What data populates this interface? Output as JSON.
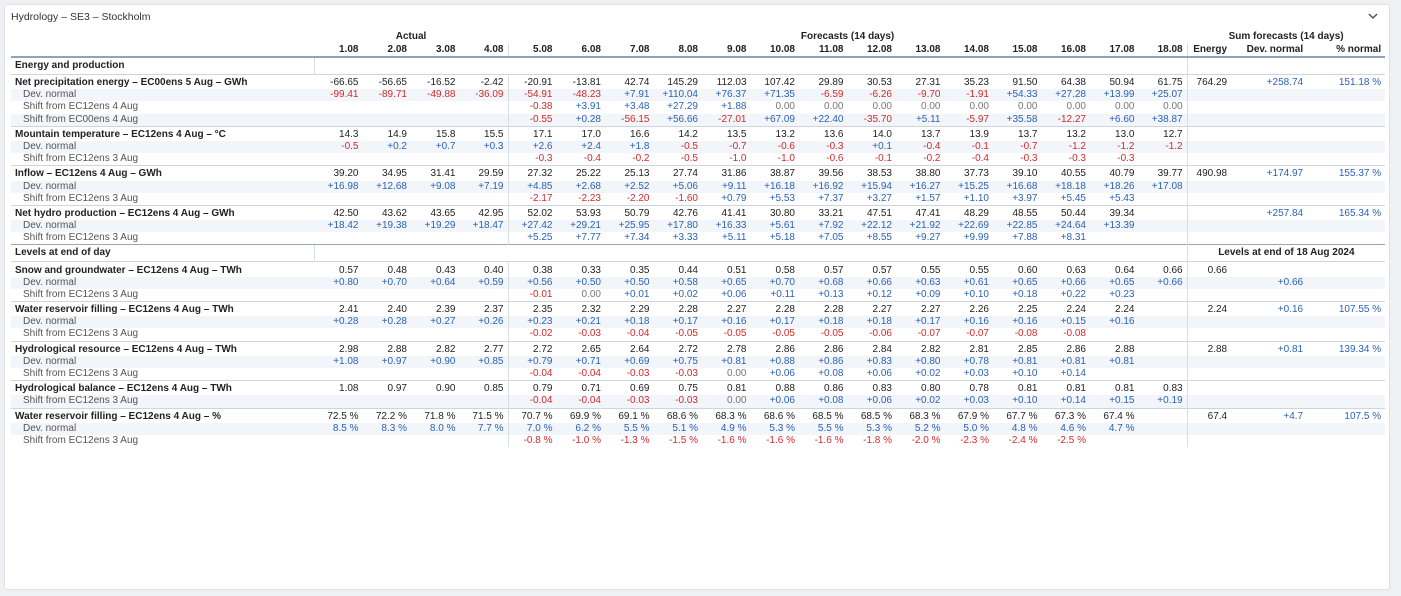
{
  "title": "Hydrology – SE3 – Stockholm",
  "header": {
    "groups": [
      "Actual",
      "Forecasts (14 days)",
      "Sum forecasts (14 days)"
    ],
    "dates": [
      "1.08",
      "2.08",
      "3.08",
      "4.08",
      "5.08",
      "6.08",
      "7.08",
      "8.08",
      "9.08",
      "10.08",
      "11.08",
      "12.08",
      "13.08",
      "14.08",
      "15.08",
      "16.08",
      "17.08",
      "18.08"
    ],
    "sum_cols": [
      "Energy",
      "Dev. normal",
      "% normal"
    ]
  },
  "rows": [
    {
      "type": "section",
      "label": "Energy and production"
    },
    {
      "type": "main",
      "label": "Net precipitation energy – EC00ens 5 Aug – GWh",
      "values": [
        "-66.65",
        "-56.65",
        "-16.52",
        "-2.42",
        "-20.91",
        "-13.81",
        "42.74",
        "145.29",
        "112.03",
        "107.42",
        "29.89",
        "30.53",
        "27.31",
        "35.23",
        "91.50",
        "64.38",
        "50.94",
        "61.75"
      ],
      "sums": [
        "764.29",
        "+258.74",
        "151.18 %"
      ]
    },
    {
      "type": "sub",
      "label": "Dev. normal",
      "values": [
        "-99.41",
        "-89.71",
        "-49.88",
        "-36.09",
        "-54.91",
        "-48.23",
        "+7.91",
        "+110.04",
        "+76.37",
        "+71.35",
        "-6.59",
        "-6.26",
        "-9.70",
        "-1.91",
        "+54.33",
        "+27.28",
        "+13.99",
        "+25.07"
      ],
      "sums": [
        "",
        "",
        ""
      ]
    },
    {
      "type": "sub",
      "label": "Shift from EC12ens 4 Aug",
      "values": [
        "",
        "",
        "",
        "",
        "-0.38",
        "+3.91",
        "+3.48",
        "+27.29",
        "+1.88",
        "0.00",
        "0.00",
        "0.00",
        "0.00",
        "0.00",
        "0.00",
        "0.00",
        "0.00",
        "0.00"
      ],
      "sums": [
        "",
        "",
        ""
      ]
    },
    {
      "type": "sub",
      "label": "Shift from EC00ens 4 Aug",
      "values": [
        "",
        "",
        "",
        "",
        "-0.55",
        "+0.28",
        "-56.15",
        "+56.66",
        "-27.01",
        "+67.09",
        "+22.40",
        "-35.70",
        "+5.11",
        "-5.97",
        "+35.58",
        "-12.27",
        "+6.60",
        "+38.87"
      ],
      "sums": [
        "",
        "",
        ""
      ]
    },
    {
      "type": "main",
      "label": "Mountain temperature – EC12ens 4 Aug – °C",
      "values": [
        "14.3",
        "14.9",
        "15.8",
        "15.5",
        "17.1",
        "17.0",
        "16.6",
        "14.2",
        "13.5",
        "13.2",
        "13.6",
        "14.0",
        "13.7",
        "13.9",
        "13.7",
        "13.2",
        "13.0",
        "12.7"
      ],
      "sums": [
        "",
        "",
        ""
      ]
    },
    {
      "type": "sub",
      "label": "Dev. normal",
      "values": [
        "-0.5",
        "+0.2",
        "+0.7",
        "+0.3",
        "+2.6",
        "+2.4",
        "+1.8",
        "-0.5",
        "-0.7",
        "-0.6",
        "-0.3",
        "+0.1",
        "-0.4",
        "-0.1",
        "-0.7",
        "-1.2",
        "-1.2",
        "-1.2"
      ],
      "sums": [
        "",
        "",
        ""
      ]
    },
    {
      "type": "sub",
      "label": "Shift from EC12ens 3 Aug",
      "values": [
        "",
        "",
        "",
        "",
        "-0.3",
        "-0.4",
        "-0.2",
        "-0.5",
        "-1.0",
        "-1.0",
        "-0.6",
        "-0.1",
        "-0.2",
        "-0.4",
        "-0.3",
        "-0.3",
        "-0.3",
        ""
      ],
      "sums": [
        "",
        "",
        ""
      ]
    },
    {
      "type": "main",
      "label": "Inflow – EC12ens 4 Aug – GWh",
      "values": [
        "39.20",
        "34.95",
        "31.41",
        "29.59",
        "27.32",
        "25.22",
        "25.13",
        "27.74",
        "31.86",
        "38.87",
        "39.56",
        "38.53",
        "38.80",
        "37.73",
        "39.10",
        "40.55",
        "40.79",
        "39.77"
      ],
      "sums": [
        "490.98",
        "+174.97",
        "155.37 %"
      ]
    },
    {
      "type": "sub",
      "label": "Dev. normal",
      "values": [
        "+16.98",
        "+12.68",
        "+9.08",
        "+7.19",
        "+4.85",
        "+2.68",
        "+2.52",
        "+5.06",
        "+9.11",
        "+16.18",
        "+16.92",
        "+15.94",
        "+16.27",
        "+15.25",
        "+16.68",
        "+18.18",
        "+18.26",
        "+17.08"
      ],
      "sums": [
        "",
        "",
        ""
      ]
    },
    {
      "type": "sub",
      "label": "Shift from EC12ens 3 Aug",
      "values": [
        "",
        "",
        "",
        "",
        "-2.17",
        "-2.23",
        "-2.20",
        "-1.60",
        "+0.79",
        "+5.53",
        "+7.37",
        "+3.27",
        "+1.57",
        "+1.10",
        "+3.97",
        "+5.45",
        "+5.43",
        ""
      ],
      "sums": [
        "",
        "",
        ""
      ]
    },
    {
      "type": "main",
      "label": "Net hydro production – EC12ens 4 Aug – GWh",
      "values": [
        "42.50",
        "43.62",
        "43.65",
        "42.95",
        "52.02",
        "53.93",
        "50.79",
        "42.76",
        "41.41",
        "30.80",
        "33.21",
        "47.51",
        "47.41",
        "48.29",
        "48.55",
        "50.44",
        "39.34",
        ""
      ],
      "sums": [
        "",
        "+257.84",
        "165.34 %"
      ]
    },
    {
      "type": "sub",
      "label": "Dev. normal",
      "values": [
        "+18.42",
        "+19.38",
        "+19.29",
        "+18.47",
        "+27.42",
        "+29.21",
        "+25.95",
        "+17.80",
        "+16.33",
        "+5.61",
        "+7.92",
        "+22.12",
        "+21.92",
        "+22.69",
        "+22.85",
        "+24.64",
        "+13.39",
        ""
      ],
      "sums": [
        "",
        "",
        ""
      ]
    },
    {
      "type": "sub",
      "label": "Shift from EC12ens 3 Aug",
      "values": [
        "",
        "",
        "",
        "",
        "+5.25",
        "+7.77",
        "+7.34",
        "+3.33",
        "+5.11",
        "+5.18",
        "+7.05",
        "+8.55",
        "+9.27",
        "+9.99",
        "+7.88",
        "+8.31",
        "",
        ""
      ],
      "sums": [
        "",
        "",
        ""
      ]
    },
    {
      "type": "section",
      "label": "Levels at end of day",
      "right": "Levels at end of 18 Aug 2024"
    },
    {
      "type": "main",
      "label": "Snow and groundwater – EC12ens 4 Aug – TWh",
      "values": [
        "0.57",
        "0.48",
        "0.43",
        "0.40",
        "0.38",
        "0.33",
        "0.35",
        "0.44",
        "0.51",
        "0.58",
        "0.57",
        "0.57",
        "0.55",
        "0.55",
        "0.60",
        "0.63",
        "0.64",
        "0.66"
      ],
      "sums": [
        "0.66",
        "",
        ""
      ]
    },
    {
      "type": "sub",
      "label": "Dev. normal",
      "values": [
        "+0.80",
        "+0.70",
        "+0.64",
        "+0.59",
        "+0.56",
        "+0.50",
        "+0.50",
        "+0.58",
        "+0.65",
        "+0.70",
        "+0.68",
        "+0.66",
        "+0.63",
        "+0.61",
        "+0.65",
        "+0.66",
        "+0.65",
        "+0.66"
      ],
      "sums": [
        "",
        "+0.66",
        ""
      ]
    },
    {
      "type": "sub",
      "label": "Shift from EC12ens 3 Aug",
      "values": [
        "",
        "",
        "",
        "",
        "-0.01",
        "0.00",
        "+0.01",
        "+0.02",
        "+0.06",
        "+0.11",
        "+0.13",
        "+0.12",
        "+0.09",
        "+0.10",
        "+0.18",
        "+0.22",
        "+0.23",
        ""
      ],
      "sums": [
        "",
        "",
        ""
      ]
    },
    {
      "type": "main",
      "label": "Water reservoir filling – EC12ens 4 Aug – TWh",
      "values": [
        "2.41",
        "2.40",
        "2.39",
        "2.37",
        "2.35",
        "2.32",
        "2.29",
        "2.28",
        "2.27",
        "2.28",
        "2.28",
        "2.27",
        "2.27",
        "2.26",
        "2.25",
        "2.24",
        "2.24",
        ""
      ],
      "sums": [
        "2.24",
        "+0.16",
        "107.55 %"
      ]
    },
    {
      "type": "sub",
      "label": "Dev. normal",
      "values": [
        "+0.28",
        "+0.28",
        "+0.27",
        "+0.26",
        "+0.23",
        "+0.21",
        "+0.18",
        "+0.17",
        "+0.16",
        "+0.17",
        "+0.18",
        "+0.18",
        "+0.17",
        "+0.16",
        "+0.16",
        "+0.15",
        "+0.16",
        ""
      ],
      "sums": [
        "",
        "",
        ""
      ]
    },
    {
      "type": "sub",
      "label": "Shift from EC12ens 3 Aug",
      "values": [
        "",
        "",
        "",
        "",
        "-0.02",
        "-0.03",
        "-0.04",
        "-0.05",
        "-0.05",
        "-0.05",
        "-0.05",
        "-0.06",
        "-0.07",
        "-0.07",
        "-0.08",
        "-0.08",
        "",
        ""
      ],
      "sums": [
        "",
        "",
        ""
      ]
    },
    {
      "type": "main",
      "label": "Hydrological resource – EC12ens 4 Aug – TWh",
      "values": [
        "2.98",
        "2.88",
        "2.82",
        "2.77",
        "2.72",
        "2.65",
        "2.64",
        "2.72",
        "2.78",
        "2.86",
        "2.86",
        "2.84",
        "2.82",
        "2.81",
        "2.85",
        "2.86",
        "2.88",
        ""
      ],
      "sums": [
        "2.88",
        "+0.81",
        "139.34 %"
      ]
    },
    {
      "type": "sub",
      "label": "Dev. normal",
      "values": [
        "+1.08",
        "+0.97",
        "+0.90",
        "+0.85",
        "+0.79",
        "+0.71",
        "+0.69",
        "+0.75",
        "+0.81",
        "+0.88",
        "+0.86",
        "+0.83",
        "+0.80",
        "+0.78",
        "+0.81",
        "+0.81",
        "+0.81",
        ""
      ],
      "sums": [
        "",
        "",
        ""
      ]
    },
    {
      "type": "sub",
      "label": "Shift from EC12ens 3 Aug",
      "values": [
        "",
        "",
        "",
        "",
        "-0.04",
        "-0.04",
        "-0.03",
        "-0.03",
        "0.00",
        "+0.06",
        "+0.08",
        "+0.06",
        "+0.02",
        "+0.03",
        "+0.10",
        "+0.14",
        "",
        ""
      ],
      "sums": [
        "",
        "",
        ""
      ]
    },
    {
      "type": "main",
      "label": "Hydrological balance – EC12ens 4 Aug – TWh",
      "values": [
        "1.08",
        "0.97",
        "0.90",
        "0.85",
        "0.79",
        "0.71",
        "0.69",
        "0.75",
        "0.81",
        "0.88",
        "0.86",
        "0.83",
        "0.80",
        "0.78",
        "0.81",
        "0.81",
        "0.81",
        "0.83"
      ],
      "sums": [
        "",
        "",
        ""
      ]
    },
    {
      "type": "sub",
      "label": "Shift from EC12ens 3 Aug",
      "values": [
        "",
        "",
        "",
        "",
        "-0.04",
        "-0.04",
        "-0.03",
        "-0.03",
        "0.00",
        "+0.06",
        "+0.08",
        "+0.06",
        "+0.02",
        "+0.03",
        "+0.10",
        "+0.14",
        "+0.15",
        "+0.19"
      ],
      "sums": [
        "",
        "",
        ""
      ]
    },
    {
      "type": "main",
      "label": "Water reservoir filling – EC12ens 4 Aug – %",
      "values": [
        "72.5 %",
        "72.2 %",
        "71.8 %",
        "71.5 %",
        "70.7 %",
        "69.9 %",
        "69.1 %",
        "68.6 %",
        "68.3 %",
        "68.6 %",
        "68.5 %",
        "68.5 %",
        "68.3 %",
        "67.9 %",
        "67.7 %",
        "67.3 %",
        "67.4 %",
        ""
      ],
      "sums": [
        "67.4",
        "+4.7",
        "107.5 %"
      ]
    },
    {
      "type": "sub",
      "label": "Dev. normal",
      "values": [
        "8.5 %",
        "8.3 %",
        "8.0 %",
        "7.7 %",
        "7.0 %",
        "6.2 %",
        "5.5 %",
        "5.1 %",
        "4.9 %",
        "5.3 %",
        "5.5 %",
        "5.3 %",
        "5.2 %",
        "5.0 %",
        "4.8 %",
        "4.6 %",
        "4.7 %",
        ""
      ],
      "sums": [
        "",
        "",
        ""
      ]
    },
    {
      "type": "sub",
      "label": "Shift from EC12ens 3 Aug",
      "values": [
        "",
        "",
        "",
        "",
        "-0.8 %",
        "-1.0 %",
        "-1.3 %",
        "-1.5 %",
        "-1.6 %",
        "-1.6 %",
        "-1.6 %",
        "-1.8 %",
        "-2.0 %",
        "-2.3 %",
        "-2.4 %",
        "-2.5 %",
        "",
        ""
      ],
      "sums": [
        "",
        "",
        ""
      ]
    }
  ]
}
